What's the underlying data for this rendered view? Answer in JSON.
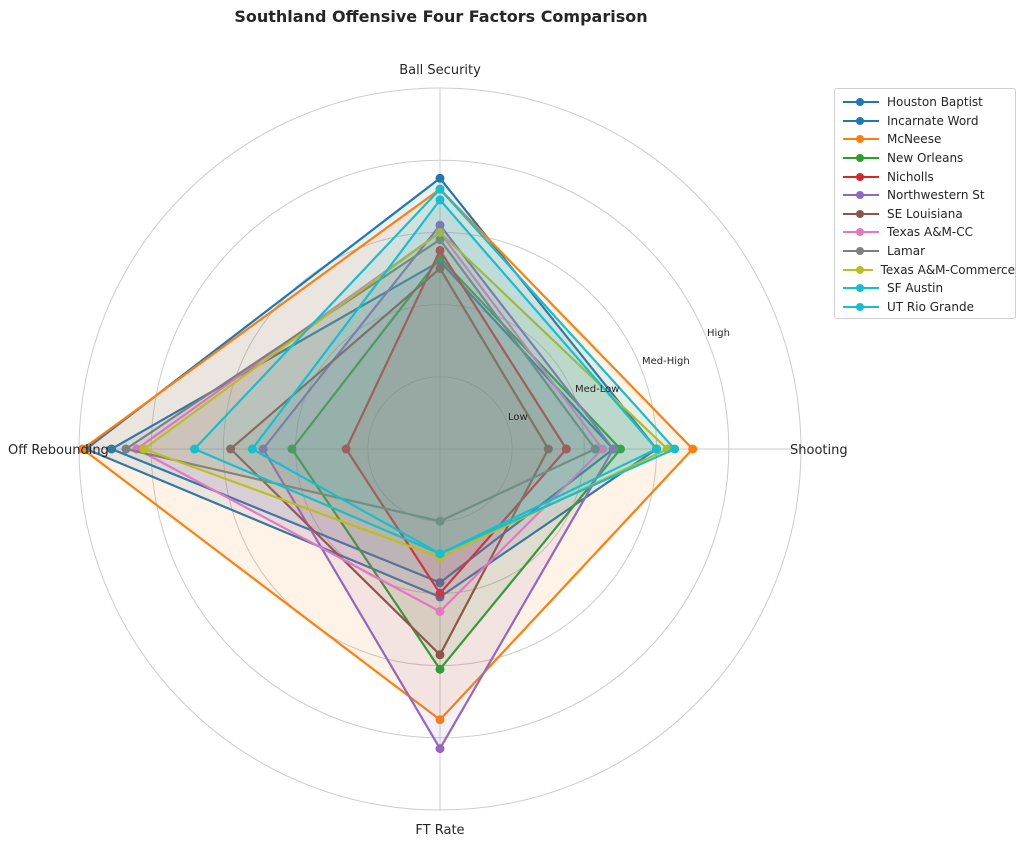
{
  "chart_data": {
    "type": "radar",
    "title": "Southland Offensive Four Factors Comparison",
    "axes": [
      "Ball Security",
      "Shooting",
      "FT Rate",
      "Off Rebounding"
    ],
    "rlim": [
      0,
      1.0
    ],
    "rticks": [
      0.2,
      0.4,
      0.6,
      0.8
    ],
    "rtick_labels": [
      "Low",
      "Med-Low",
      "Med-High",
      "High"
    ],
    "grid": true,
    "legend_position": "upper-right-outside",
    "series": [
      {
        "name": "Houston Baptist",
        "color": "#1f77b4",
        "values": [
          0.52,
          0.48,
          0.37,
          0.91
        ]
      },
      {
        "name": "Incarnate Word",
        "color": "#1f77b4",
        "values": [
          0.75,
          0.6,
          0.41,
          0.98
        ]
      },
      {
        "name": "McNeese",
        "color": "#ff7f0e",
        "values": [
          0.72,
          0.7,
          0.75,
          0.99
        ]
      },
      {
        "name": "New Orleans",
        "color": "#2ca02c",
        "values": [
          0.53,
          0.5,
          0.61,
          0.41
        ]
      },
      {
        "name": "Nicholls",
        "color": "#d62728",
        "values": [
          0.55,
          0.35,
          0.4,
          0.26
        ]
      },
      {
        "name": "Northwestern St",
        "color": "#9467bd",
        "values": [
          0.62,
          0.48,
          0.83,
          0.49
        ]
      },
      {
        "name": "SE Louisiana",
        "color": "#8c564b",
        "values": [
          0.5,
          0.3,
          0.57,
          0.58
        ]
      },
      {
        "name": "Texas A&M-CC",
        "color": "#e377c2",
        "values": [
          0.6,
          0.45,
          0.45,
          0.84
        ]
      },
      {
        "name": "Lamar",
        "color": "#7f7f7f",
        "values": [
          0.58,
          0.43,
          0.2,
          0.87
        ]
      },
      {
        "name": "Texas A&M-Commerce",
        "color": "#bcbd22",
        "values": [
          0.6,
          0.63,
          0.3,
          0.82
        ]
      },
      {
        "name": "SF Austin",
        "color": "#17becf",
        "values": [
          0.72,
          0.65,
          0.29,
          0.68
        ]
      },
      {
        "name": "UT Rio Grande",
        "color": "#17becf",
        "values": [
          0.69,
          0.6,
          0.29,
          0.52
        ]
      }
    ]
  }
}
